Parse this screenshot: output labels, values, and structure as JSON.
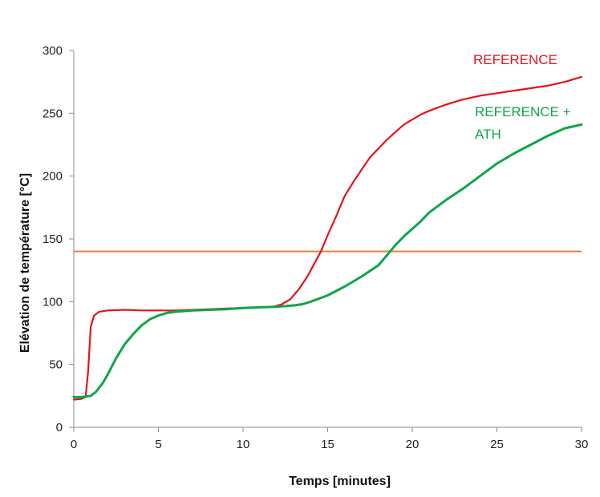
{
  "chart_data": {
    "type": "line",
    "title": "",
    "xlabel": "Temps [minutes]",
    "ylabel": "Elévation de température [°C]",
    "xlim": [
      0,
      30
    ],
    "ylim": [
      0,
      300
    ],
    "x_ticks": [
      0,
      5,
      10,
      15,
      20,
      25,
      30
    ],
    "y_ticks": [
      0,
      50,
      100,
      150,
      200,
      250,
      300
    ],
    "grid": false,
    "legend": "none",
    "annotation_lines": [
      {
        "y": 140,
        "color": "#ed7d31"
      }
    ],
    "series": [
      {
        "name": "REFERENCE",
        "color": "#e3141b",
        "label_lines": [
          "REFERENCE"
        ],
        "points": [
          [
            0,
            22
          ],
          [
            0.4,
            22.5
          ],
          [
            0.7,
            24
          ],
          [
            0.85,
            45
          ],
          [
            1.0,
            80
          ],
          [
            1.2,
            89
          ],
          [
            1.5,
            92
          ],
          [
            2,
            93
          ],
          [
            3,
            93.5
          ],
          [
            4,
            93
          ],
          [
            5,
            93
          ],
          [
            6,
            93
          ],
          [
            7,
            93.5
          ],
          [
            8,
            94
          ],
          [
            9,
            94.5
          ],
          [
            10,
            95
          ],
          [
            11,
            95.5
          ],
          [
            11.8,
            96
          ],
          [
            12.3,
            98
          ],
          [
            12.8,
            102
          ],
          [
            13.3,
            110
          ],
          [
            13.8,
            120
          ],
          [
            14.2,
            130
          ],
          [
            14.6,
            140
          ],
          [
            15,
            153
          ],
          [
            15.5,
            168
          ],
          [
            16,
            184
          ],
          [
            16.5,
            195
          ],
          [
            17,
            205
          ],
          [
            17.5,
            215
          ],
          [
            18,
            222
          ],
          [
            18.5,
            229
          ],
          [
            19,
            235
          ],
          [
            19.5,
            241
          ],
          [
            20,
            245
          ],
          [
            20.5,
            249
          ],
          [
            21,
            252
          ],
          [
            22,
            257
          ],
          [
            23,
            261
          ],
          [
            24,
            264
          ],
          [
            25,
            266
          ],
          [
            26,
            268
          ],
          [
            27,
            270
          ],
          [
            28,
            272
          ],
          [
            29,
            275
          ],
          [
            30,
            279
          ]
        ]
      },
      {
        "name": "REFERENCE + ATH",
        "color": "#10a54a",
        "label_lines": [
          "REFERENCE +",
          "ATH"
        ],
        "points": [
          [
            0,
            24
          ],
          [
            0.5,
            24
          ],
          [
            1,
            25
          ],
          [
            1.3,
            28
          ],
          [
            1.7,
            35
          ],
          [
            2,
            42
          ],
          [
            2.5,
            55
          ],
          [
            3,
            66
          ],
          [
            3.5,
            74
          ],
          [
            4,
            81
          ],
          [
            4.5,
            86
          ],
          [
            5,
            89
          ],
          [
            5.5,
            91
          ],
          [
            6,
            92
          ],
          [
            7,
            93
          ],
          [
            8,
            93.5
          ],
          [
            9,
            94
          ],
          [
            10,
            95
          ],
          [
            11,
            95.5
          ],
          [
            12,
            96
          ],
          [
            13,
            97
          ],
          [
            13.5,
            98
          ],
          [
            14,
            100
          ],
          [
            15,
            105
          ],
          [
            16,
            112
          ],
          [
            17,
            120
          ],
          [
            18,
            129
          ],
          [
            18.5,
            137
          ],
          [
            19,
            145
          ],
          [
            19.5,
            152
          ],
          [
            20,
            158
          ],
          [
            20.5,
            164
          ],
          [
            21,
            171
          ],
          [
            22,
            181
          ],
          [
            23,
            190
          ],
          [
            24,
            200
          ],
          [
            25,
            210
          ],
          [
            26,
            218
          ],
          [
            27,
            225
          ],
          [
            28,
            232
          ],
          [
            29,
            238
          ],
          [
            30,
            241
          ]
        ]
      }
    ]
  }
}
